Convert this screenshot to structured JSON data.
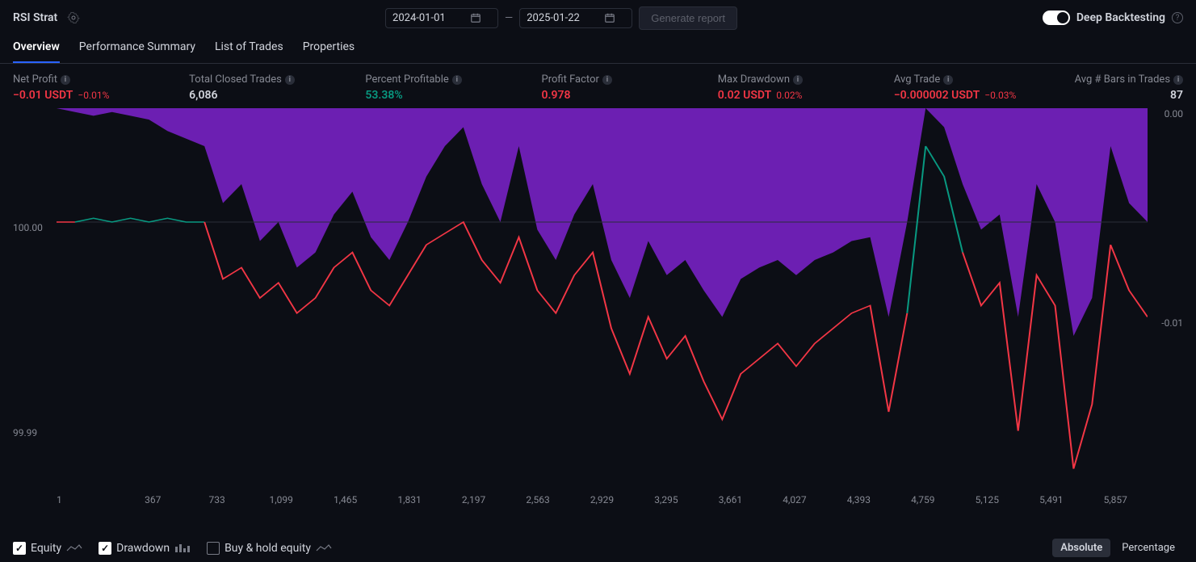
{
  "strategy_name": "RSI Strat",
  "date_from": "2024-01-01",
  "date_to": "2025-01-22",
  "generate_report_label": "Generate report",
  "deep_backtesting_label": "Deep Backtesting",
  "deep_backtesting_on": true,
  "tabs": {
    "overview": "Overview",
    "perf": "Performance Summary",
    "trades": "List of Trades",
    "props": "Properties"
  },
  "active_tab": "overview",
  "stats": {
    "net_profit": {
      "label": "Net Profit",
      "value": "−0.01 USDT",
      "sub": "−0.01%",
      "color": "red"
    },
    "closed": {
      "label": "Total Closed Trades",
      "value": "6,086",
      "sub": "",
      "color": "white"
    },
    "pct_profit": {
      "label": "Percent Profitable",
      "value": "53.38%",
      "sub": "",
      "color": "green"
    },
    "profit_fac": {
      "label": "Profit Factor",
      "value": "0.978",
      "sub": "",
      "color": "red"
    },
    "max_dd": {
      "label": "Max Drawdown",
      "value": "0.02 USDT",
      "sub": "0.02%",
      "color": "red"
    },
    "avg_trade": {
      "label": "Avg Trade",
      "value": "−0.000002 USDT",
      "sub": "−0.03%",
      "color": "red"
    },
    "avg_bars": {
      "label": "Avg # Bars in Trades",
      "value": "87",
      "sub": "",
      "color": "white"
    }
  },
  "chart": {
    "type": "area+line",
    "background_color": "#0c0e15",
    "drawdown_color": "#7e22ce",
    "drawdown_opacity": 0.85,
    "equity_down_color": "#f23645",
    "equity_up_color": "#089981",
    "baseline_y_equity": 100.0,
    "y_left_ticks": [
      {
        "v": "100.00",
        "pos": 0.3
      },
      {
        "v": "99.99",
        "pos": 0.84
      }
    ],
    "y_right_ticks": [
      {
        "v": "0.00",
        "pos": 0.0
      },
      {
        "v": "-0.01",
        "pos": 0.55
      }
    ],
    "x_ticks": [
      "1",
      "367",
      "733",
      "1,099",
      "1,465",
      "1,831",
      "2,197",
      "2,563",
      "2,929",
      "3,295",
      "3,661",
      "4,027",
      "4,393",
      "4,759",
      "5,125",
      "5,491",
      "5,857"
    ],
    "drawdown": [
      0.0,
      0.01,
      0.02,
      0.01,
      0.02,
      0.03,
      0.06,
      0.08,
      0.1,
      0.25,
      0.2,
      0.35,
      0.3,
      0.42,
      0.38,
      0.28,
      0.22,
      0.34,
      0.4,
      0.3,
      0.18,
      0.1,
      0.05,
      0.2,
      0.3,
      0.1,
      0.32,
      0.4,
      0.28,
      0.2,
      0.4,
      0.5,
      0.35,
      0.44,
      0.4,
      0.48,
      0.55,
      0.45,
      0.42,
      0.4,
      0.44,
      0.4,
      0.38,
      0.35,
      0.34,
      0.55,
      0.3,
      0.0,
      0.05,
      0.2,
      0.32,
      0.28,
      0.55,
      0.2,
      0.3,
      0.6,
      0.5,
      0.1,
      0.25,
      0.3
    ],
    "equity": [
      0.3,
      0.3,
      0.29,
      0.3,
      0.29,
      0.3,
      0.29,
      0.3,
      0.3,
      0.45,
      0.42,
      0.5,
      0.46,
      0.54,
      0.5,
      0.42,
      0.38,
      0.48,
      0.52,
      0.44,
      0.36,
      0.33,
      0.3,
      0.4,
      0.46,
      0.34,
      0.48,
      0.54,
      0.44,
      0.38,
      0.58,
      0.7,
      0.55,
      0.66,
      0.6,
      0.72,
      0.82,
      0.7,
      0.66,
      0.62,
      0.68,
      0.62,
      0.58,
      0.54,
      0.52,
      0.8,
      0.54,
      0.1,
      0.18,
      0.38,
      0.52,
      0.46,
      0.85,
      0.44,
      0.52,
      0.95,
      0.78,
      0.36,
      0.48,
      0.55
    ],
    "green_ranges": [
      [
        2,
        8
      ],
      [
        47,
        49
      ]
    ]
  },
  "legend": {
    "equity": {
      "label": "Equity",
      "checked": true
    },
    "drawdown": {
      "label": "Drawdown",
      "checked": true
    },
    "buyhold": {
      "label": "Buy & hold equity",
      "checked": false
    }
  },
  "mode": {
    "absolute": "Absolute",
    "percentage": "Percentage",
    "active": "absolute"
  }
}
